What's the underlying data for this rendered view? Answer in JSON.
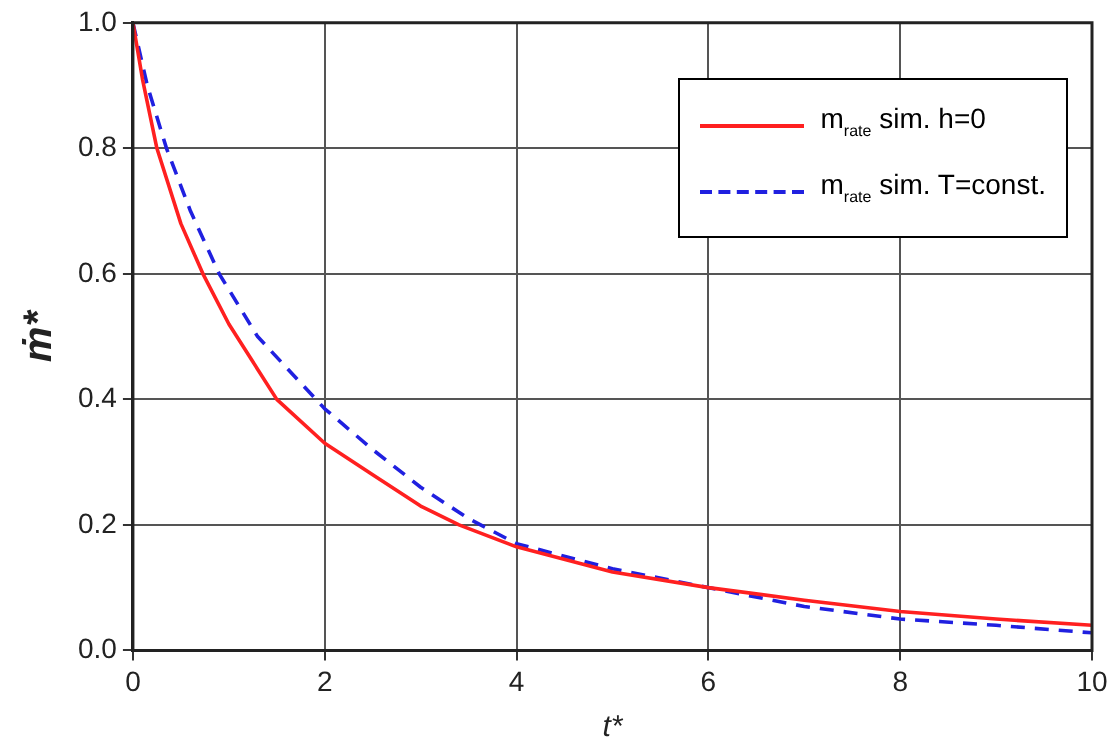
{
  "chart_data": {
    "type": "line",
    "xlabel": "t*",
    "ylabel": "ṁ*",
    "xlim": [
      0,
      10
    ],
    "xticks": [
      0,
      2,
      4,
      6,
      8,
      10
    ],
    "ylim": [
      0,
      1
    ],
    "yticks": [
      {
        "value": 0,
        "label": "0.0"
      },
      {
        "value": 0.2,
        "label": "0.2"
      },
      {
        "value": 0.4,
        "label": "0.4"
      },
      {
        "value": 0.6,
        "label": "0.6"
      },
      {
        "value": 0.8,
        "label": "0.8"
      },
      {
        "value": 1,
        "label": "1.0"
      }
    ],
    "grid": true,
    "legend": "top right",
    "marker": "none",
    "series": [
      {
        "name": "m$_{rate}$ sim. h=0",
        "color": "#ff2020",
        "line_style": "solid",
        "x": [
          0,
          0.1,
          0.25,
          0.5,
          0.73,
          1,
          1.5,
          2,
          2.5,
          3,
          3.4,
          4,
          5,
          6,
          7,
          8,
          9,
          10
        ],
        "values": [
          1,
          0.91,
          0.8,
          0.68,
          0.6,
          0.52,
          0.4,
          0.33,
          0.28,
          0.23,
          0.2,
          0.165,
          0.125,
          0.1,
          0.08,
          0.062,
          0.05,
          0.04
        ]
      },
      {
        "name": "m$_{rate}$ sim. T=const.",
        "color": "#2020e0",
        "line_style": "dashed",
        "x": [
          0,
          0.15,
          0.35,
          0.6,
          0.9,
          1.3,
          2,
          2.5,
          3,
          3.5,
          4,
          5,
          6,
          7,
          8,
          9,
          10
        ],
        "values": [
          1,
          0.9,
          0.8,
          0.7,
          0.6,
          0.5,
          0.385,
          0.32,
          0.26,
          0.21,
          0.17,
          0.13,
          0.1,
          0.07,
          0.05,
          0.04,
          0.028
        ]
      }
    ]
  }
}
